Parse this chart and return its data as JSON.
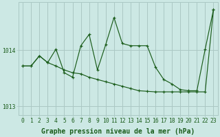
{
  "title": "Graphe pression niveau de la mer (hPa)",
  "bg_color": "#cce8e4",
  "grid_color": "#aac8c4",
  "line_color": "#1a5c1a",
  "x_labels": [
    "0",
    "1",
    "2",
    "3",
    "4",
    "5",
    "6",
    "7",
    "8",
    "9",
    "10",
    "11",
    "12",
    "13",
    "14",
    "15",
    "16",
    "17",
    "18",
    "19",
    "20",
    "21",
    "22",
    "23"
  ],
  "hours": [
    0,
    1,
    2,
    3,
    4,
    5,
    6,
    7,
    8,
    9,
    10,
    11,
    12,
    13,
    14,
    15,
    16,
    17,
    18,
    19,
    20,
    21,
    22,
    23
  ],
  "pressure1": [
    1013.72,
    1013.72,
    1013.9,
    1013.78,
    1014.02,
    1013.6,
    1013.52,
    1014.08,
    1014.28,
    1013.65,
    1014.1,
    1014.58,
    1014.12,
    1014.08,
    1014.08,
    1014.08,
    1013.7,
    1013.48,
    1013.4,
    1013.3,
    1013.28,
    1013.28,
    1014.02,
    1014.72
  ],
  "pressure2": [
    1013.72,
    1013.72,
    1013.9,
    1013.78,
    1013.72,
    1013.65,
    1013.6,
    1013.58,
    1013.52,
    1013.48,
    1013.44,
    1013.4,
    1013.36,
    1013.32,
    1013.28,
    1013.27,
    1013.26,
    1013.26,
    1013.26,
    1013.26,
    1013.26,
    1013.26,
    1013.26,
    1014.72
  ],
  "ylim_min": 1012.85,
  "ylim_max": 1014.85,
  "yticks": [
    1013,
    1014
  ],
  "title_fontsize": 7.0,
  "tick_fontsize": 5.8
}
